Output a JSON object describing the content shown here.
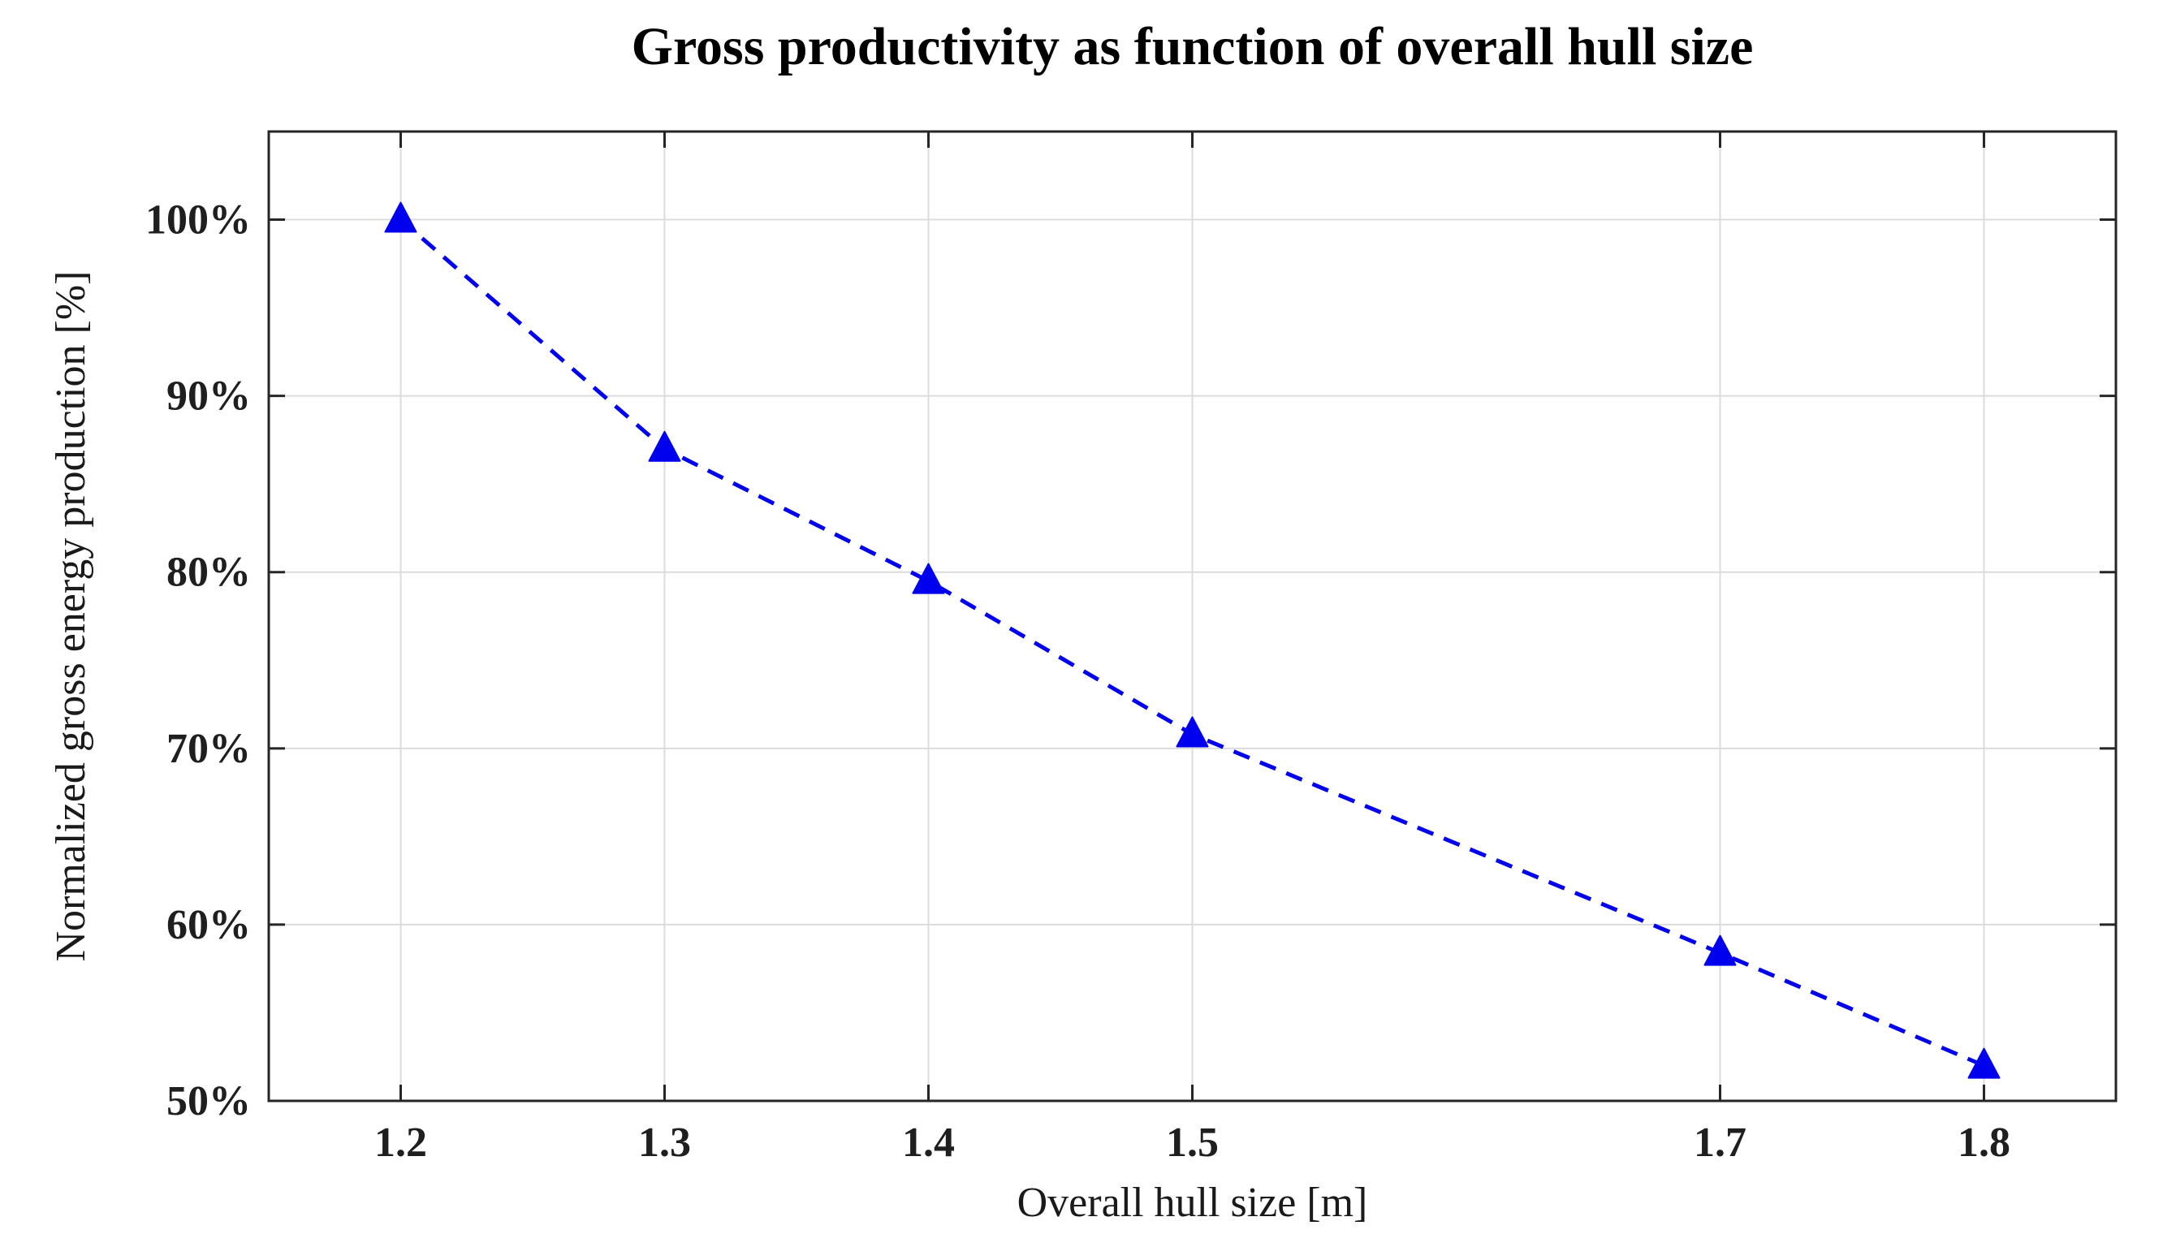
{
  "figure": {
    "background": "#ffffff"
  },
  "chart_data": {
    "type": "line",
    "title": "Gross productivity as function of overall hull size",
    "xlabel": "Overall hull size [m]",
    "ylabel": "Normalized gross energy production [%]",
    "x": [
      1.2,
      1.3,
      1.4,
      1.5,
      1.7,
      1.8
    ],
    "y": [
      100,
      87,
      79.5,
      70.8,
      58.4,
      52
    ],
    "y_unit": "%",
    "xlim": [
      1.15,
      1.85
    ],
    "ylim": [
      50,
      105
    ],
    "xticks": [
      1.2,
      1.3,
      1.4,
      1.5,
      1.7,
      1.8
    ],
    "xticklabels": [
      "1.2",
      "1.3",
      "1.4",
      "1.5",
      "1.7",
      "1.8"
    ],
    "yticks": [
      50,
      60,
      70,
      80,
      90,
      100
    ],
    "yticklabels": [
      "50%",
      "60%",
      "70%",
      "80%",
      "90%",
      "100%"
    ],
    "grid": true,
    "legend": "none",
    "series": [
      {
        "name": "Normalized gross energy production",
        "line_style": "dashed",
        "marker": "triangle-up",
        "color": "#0000ee"
      }
    ],
    "colors": {
      "line": "#0000ee",
      "marker": "#0000ee",
      "axis": "#262626",
      "grid": "#dcdcdc",
      "tick_text": "#1f1f1f",
      "title_text": "#000000"
    }
  }
}
